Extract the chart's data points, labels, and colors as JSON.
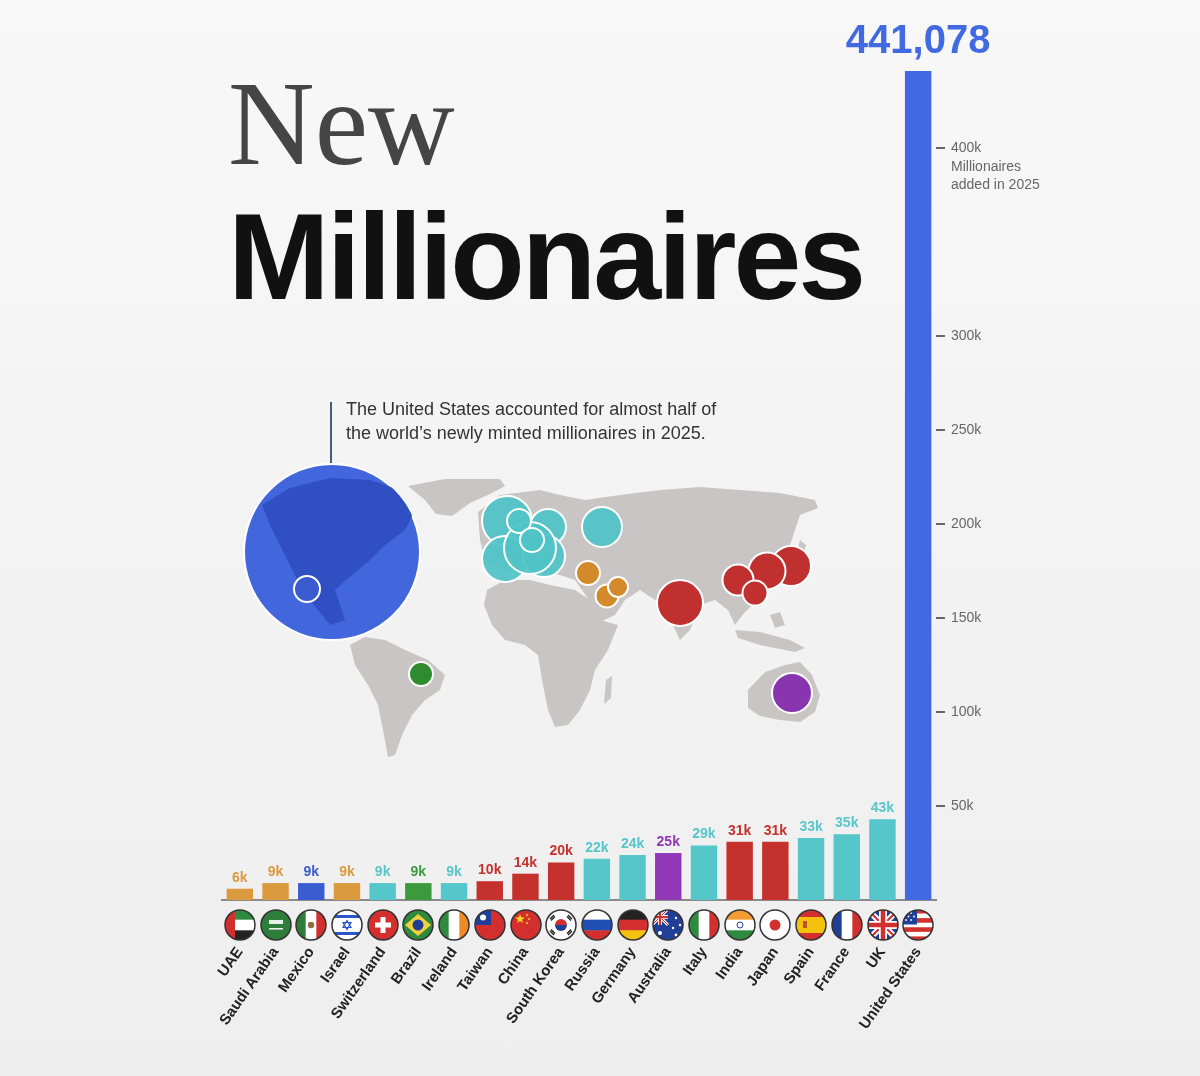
{
  "chart_data": {
    "type": "bar",
    "title": "New Millionaires",
    "ylabel": "Millionaires added in 2025",
    "annotations": [
      "The United States accounted for almost half of the world’s newly minted millionaires in 2025."
    ],
    "categories": [
      "UAE",
      "Saudi Arabia",
      "Mexico",
      "Israel",
      "Switzerland",
      "Brazil",
      "Ireland",
      "Taiwan",
      "China",
      "South Korea",
      "Russia",
      "Germany",
      "Australia",
      "Italy",
      "India",
      "Japan",
      "Spain",
      "France",
      "UK",
      "United States"
    ],
    "values": [
      6000,
      9000,
      9000,
      9000,
      9000,
      9000,
      9000,
      10000,
      14000,
      20000,
      22000,
      24000,
      25000,
      29000,
      31000,
      31000,
      33000,
      35000,
      43000,
      441078
    ],
    "colors": [
      "#dc9a3f",
      "#dc9a3f",
      "#3b5bd1",
      "#dc9a3f",
      "#55c6c9",
      "#3b9a3e",
      "#55c6c9",
      "#c5312c",
      "#c5312c",
      "#c5312c",
      "#55c6c9",
      "#55c6c9",
      "#9038b5",
      "#55c6c9",
      "#c5312c",
      "#c5312c",
      "#55c6c9",
      "#55c6c9",
      "#55c6c9",
      "#4169e1"
    ],
    "value_labels": [
      "6k",
      "9k",
      "9k",
      "9k",
      "9k",
      "9k",
      "9k",
      "10k",
      "14k",
      "20k",
      "22k",
      "24k",
      "25k",
      "29k",
      "31k",
      "31k",
      "33k",
      "35k",
      "43k",
      "441,078"
    ],
    "ylim": [
      0,
      441078
    ],
    "yticks": [
      {
        "value": 50000,
        "label": "50k"
      },
      {
        "value": 100000,
        "label": "100k"
      },
      {
        "value": 150000,
        "label": "150k"
      },
      {
        "value": 200000,
        "label": "200k"
      },
      {
        "value": 250000,
        "label": "250k"
      },
      {
        "value": 300000,
        "label": "300k"
      },
      {
        "value": 400000,
        "label": "400k"
      }
    ]
  }
}
